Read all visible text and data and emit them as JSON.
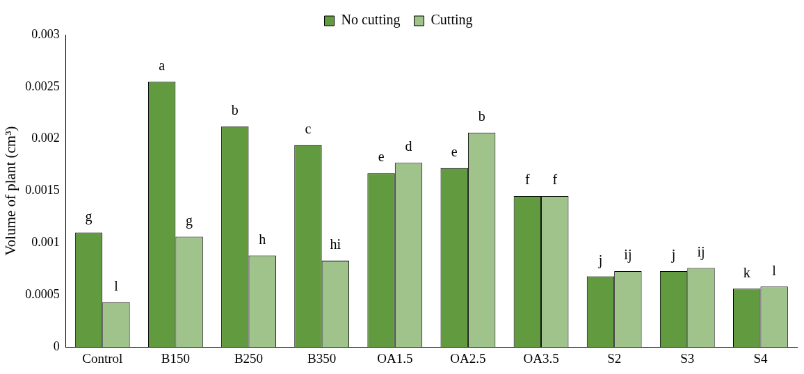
{
  "chart_data": {
    "type": "bar",
    "ylabel": "Volume of plant (cm³)",
    "categories": [
      "Control",
      "B150",
      "B250",
      "B350",
      "OA1.5",
      "OA2.5",
      "OA3.5",
      "S2",
      "S3",
      "S4"
    ],
    "series": [
      {
        "name": "No cutting",
        "color": "#629a3f",
        "values": [
          0.0011,
          0.00255,
          0.00212,
          0.00194,
          0.00167,
          0.00172,
          0.00145,
          0.00068,
          0.00073,
          0.00056
        ],
        "value_labels": [
          "g",
          "a",
          "b",
          "c",
          "e",
          "e",
          "f",
          "j",
          "j",
          "k"
        ]
      },
      {
        "name": "Cutting",
        "color": "#9fc38a",
        "values": [
          0.00043,
          0.00106,
          0.00088,
          0.00083,
          0.00177,
          0.00206,
          0.00145,
          0.00073,
          0.00076,
          0.00058
        ],
        "value_labels": [
          "l",
          "g",
          "h",
          "hi",
          "d",
          "b",
          "f",
          "ij",
          "ij",
          "l"
        ]
      }
    ],
    "ylim": [
      0,
      0.003
    ],
    "yticks": [
      0,
      0.0005,
      0.001,
      0.0015,
      0.002,
      0.0025,
      0.003
    ],
    "grid": false,
    "legend": "top"
  }
}
